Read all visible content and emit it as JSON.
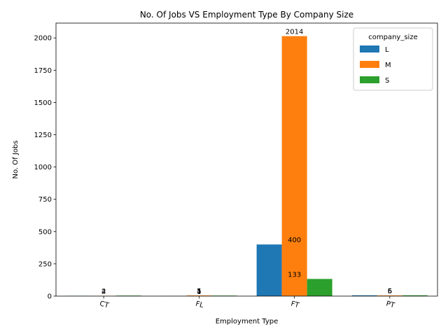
{
  "chart_data": {
    "type": "bar",
    "title": "No. Of Jobs VS Employment Type By Company Size",
    "xlabel": "Employment Type",
    "ylabel": "No. Of Jobs",
    "categories": [
      "CT",
      "FL",
      "FT",
      "PT"
    ],
    "series": [
      {
        "name": "L",
        "color": "#1f77b4",
        "values": [
          2,
          1,
          400,
          6
        ]
      },
      {
        "name": "M",
        "color": "#ff7f0e",
        "values": [
          2,
          5,
          2014,
          5
        ]
      },
      {
        "name": "S",
        "color": "#2ca02c",
        "values": [
          4,
          4,
          133,
          6
        ]
      }
    ],
    "data_labels": [
      {
        "category": "CT",
        "series": "L",
        "text": "2"
      },
      {
        "category": "CT",
        "series": "M",
        "text": "2"
      },
      {
        "category": "CT",
        "series": "S",
        "text": "4"
      },
      {
        "category": "FL",
        "series": "L",
        "text": "1"
      },
      {
        "category": "FL",
        "series": "M",
        "text": "5"
      },
      {
        "category": "FL",
        "series": "S",
        "text": "4"
      },
      {
        "category": "FT",
        "series": "L",
        "text": "400"
      },
      {
        "category": "FT",
        "series": "M",
        "text": "2014"
      },
      {
        "category": "FT",
        "series": "S",
        "text": "133"
      },
      {
        "category": "PT",
        "series": "L",
        "text": "6"
      },
      {
        "category": "PT",
        "series": "M",
        "text": "5"
      },
      {
        "category": "PT",
        "series": "S",
        "text": "6"
      }
    ],
    "ylim": [
      0,
      2115
    ],
    "yticks": [
      0,
      250,
      500,
      750,
      1000,
      1250,
      1500,
      1750,
      2000
    ],
    "ytick_labels": [
      "0",
      "250",
      "500",
      "750",
      "1000",
      "1250",
      "1500",
      "1750",
      "2000"
    ],
    "grid": false,
    "legend": {
      "title": "company_size",
      "placement": "top-right"
    }
  }
}
